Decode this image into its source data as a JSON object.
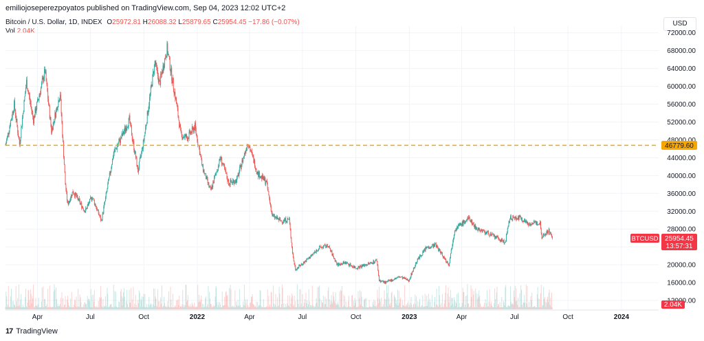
{
  "header": {
    "publisher": "emiliojoseperezpoyatos published on TradingView.com, Sep 04, 2023 12:02 UTC+2"
  },
  "legend": {
    "symbol": "Bitcoin / U.S. Dollar, 1D, INDEX",
    "open_label": "O",
    "open": "25972.81",
    "high_label": "H",
    "high": "26088.32",
    "low_label": "L",
    "low": "25879.65",
    "close_label": "C",
    "close": "25954.45",
    "change": "−17.86 (−0.07%)",
    "vol_label": "Vol",
    "vol": "2.04K"
  },
  "currency": "USD",
  "footer": {
    "logo_glyph": "17",
    "brand": "TradingView"
  },
  "colors": {
    "up": "#26a69a",
    "down": "#ef5350",
    "hline": "#f7a600",
    "price_tag": "#f23645"
  },
  "chart_data": {
    "type": "candlestick",
    "y_tick_labels": [
      "72000.00",
      "68000.00",
      "64000.00",
      "60000.00",
      "56000.00",
      "52000.00",
      "48000.00",
      "44000.00",
      "40000.00",
      "36000.00",
      "32000.00",
      "28000.00",
      "24000.00",
      "20000.00",
      "16000.00",
      "12000.00"
    ],
    "y_ticks": [
      72000,
      68000,
      64000,
      60000,
      56000,
      52000,
      48000,
      44000,
      40000,
      36000,
      32000,
      28000,
      24000,
      20000,
      16000,
      12000
    ],
    "ylim": [
      10000,
      73500
    ],
    "x_tick_labels": [
      "Apr",
      "Jul",
      "Oct",
      "2022",
      "Apr",
      "Jul",
      "Oct",
      "2023",
      "Apr",
      "Jul",
      "Oct",
      "2024"
    ],
    "x_tick_dates": [
      "2021-04-01",
      "2021-07-01",
      "2021-10-01",
      "2022-01-01",
      "2022-04-01",
      "2022-07-01",
      "2022-10-01",
      "2023-01-01",
      "2023-04-01",
      "2023-07-01",
      "2023-10-01",
      "2024-01-01"
    ],
    "xlim": [
      "2021-02-05",
      "2024-03-05"
    ],
    "horizontal_line": {
      "value": 46779.6,
      "label": "46779.60"
    },
    "last_price": {
      "symbol": "BTCUSD",
      "value": "25954.45",
      "countdown": "13:57:31"
    },
    "volume_label": "2.04K",
    "price_path": [
      {
        "date": "2021-02-05",
        "close": 46800
      },
      {
        "date": "2021-02-20",
        "close": 55900
      },
      {
        "date": "2021-03-01",
        "close": 47000
      },
      {
        "date": "2021-03-13",
        "close": 61000
      },
      {
        "date": "2021-03-25",
        "close": 52500
      },
      {
        "date": "2021-04-14",
        "close": 63500
      },
      {
        "date": "2021-04-25",
        "close": 50000
      },
      {
        "date": "2021-05-10",
        "close": 58500
      },
      {
        "date": "2021-05-19",
        "close": 38000
      },
      {
        "date": "2021-05-23",
        "close": 33500
      },
      {
        "date": "2021-06-01",
        "close": 36500
      },
      {
        "date": "2021-06-22",
        "close": 32000
      },
      {
        "date": "2021-07-04",
        "close": 35300
      },
      {
        "date": "2021-07-20",
        "close": 29800
      },
      {
        "date": "2021-08-10",
        "close": 45000
      },
      {
        "date": "2021-08-25",
        "close": 49000
      },
      {
        "date": "2021-09-06",
        "close": 52500
      },
      {
        "date": "2021-09-21",
        "close": 41000
      },
      {
        "date": "2021-10-01",
        "close": 48000
      },
      {
        "date": "2021-10-20",
        "close": 65500
      },
      {
        "date": "2021-10-28",
        "close": 60500
      },
      {
        "date": "2021-11-10",
        "close": 68500
      },
      {
        "date": "2021-11-25",
        "close": 57000
      },
      {
        "date": "2021-12-04",
        "close": 49000
      },
      {
        "date": "2021-12-15",
        "close": 48500
      },
      {
        "date": "2021-12-28",
        "close": 51000
      },
      {
        "date": "2022-01-10",
        "close": 41800
      },
      {
        "date": "2022-01-24",
        "close": 36500
      },
      {
        "date": "2022-02-10",
        "close": 44000
      },
      {
        "date": "2022-02-24",
        "close": 38300
      },
      {
        "date": "2022-03-10",
        "close": 39000
      },
      {
        "date": "2022-03-29",
        "close": 47500
      },
      {
        "date": "2022-04-15",
        "close": 40500
      },
      {
        "date": "2022-04-30",
        "close": 38500
      },
      {
        "date": "2022-05-10",
        "close": 31000
      },
      {
        "date": "2022-05-25",
        "close": 29800
      },
      {
        "date": "2022-06-08",
        "close": 30200
      },
      {
        "date": "2022-06-15",
        "close": 21500
      },
      {
        "date": "2022-06-19",
        "close": 19000
      },
      {
        "date": "2022-07-08",
        "close": 21000
      },
      {
        "date": "2022-07-30",
        "close": 23800
      },
      {
        "date": "2022-08-14",
        "close": 24300
      },
      {
        "date": "2022-08-30",
        "close": 20000
      },
      {
        "date": "2022-09-13",
        "close": 20500
      },
      {
        "date": "2022-10-01",
        "close": 19300
      },
      {
        "date": "2022-10-25",
        "close": 20300
      },
      {
        "date": "2022-11-06",
        "close": 21000
      },
      {
        "date": "2022-11-10",
        "close": 16500
      },
      {
        "date": "2022-11-21",
        "close": 16000
      },
      {
        "date": "2022-12-15",
        "close": 17300
      },
      {
        "date": "2022-12-31",
        "close": 16500
      },
      {
        "date": "2023-01-14",
        "close": 20900
      },
      {
        "date": "2023-01-30",
        "close": 23800
      },
      {
        "date": "2023-02-15",
        "close": 24500
      },
      {
        "date": "2023-03-10",
        "close": 20000
      },
      {
        "date": "2023-03-20",
        "close": 28000
      },
      {
        "date": "2023-04-14",
        "close": 30400
      },
      {
        "date": "2023-04-25",
        "close": 28300
      },
      {
        "date": "2023-05-20",
        "close": 26800
      },
      {
        "date": "2023-06-15",
        "close": 25000
      },
      {
        "date": "2023-06-23",
        "close": 30500
      },
      {
        "date": "2023-07-12",
        "close": 30500
      },
      {
        "date": "2023-07-25",
        "close": 29200
      },
      {
        "date": "2023-08-14",
        "close": 29400
      },
      {
        "date": "2023-08-17",
        "close": 26300
      },
      {
        "date": "2023-08-29",
        "close": 27700
      },
      {
        "date": "2023-09-04",
        "close": 25954
      }
    ]
  }
}
